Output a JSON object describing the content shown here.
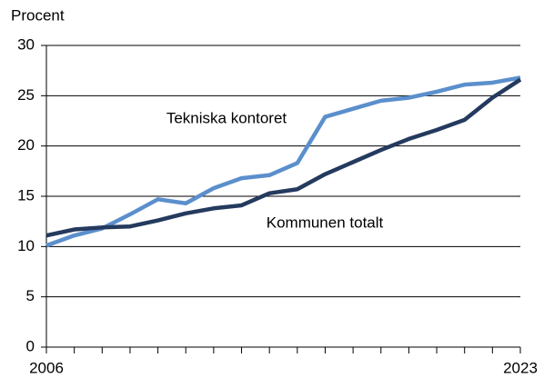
{
  "chart_data": {
    "type": "line",
    "ylabel": "Procent",
    "x": [
      2006,
      2007,
      2008,
      2009,
      2010,
      2011,
      2012,
      2013,
      2014,
      2015,
      2016,
      2017,
      2018,
      2019,
      2020,
      2021,
      2022,
      2023
    ],
    "xlim": [
      2006,
      2023
    ],
    "xticks": [
      2006,
      2023
    ],
    "ylim": [
      0,
      30
    ],
    "yticks": [
      0,
      5,
      10,
      15,
      20,
      25,
      30
    ],
    "grid": true,
    "series": [
      {
        "name": "Tekniska kontoret",
        "color": "#5b8fcc",
        "values": [
          10.1,
          11.1,
          11.8,
          13.2,
          14.7,
          14.3,
          15.8,
          16.8,
          17.1,
          18.3,
          22.9,
          23.7,
          24.5,
          24.8,
          25.4,
          26.1,
          26.3,
          26.8
        ]
      },
      {
        "name": "Kommunen totalt",
        "color": "#243a5e",
        "values": [
          11.1,
          11.7,
          11.9,
          12.0,
          12.6,
          13.3,
          13.8,
          14.1,
          15.3,
          15.7,
          17.2,
          18.4,
          19.6,
          20.7,
          21.6,
          22.6,
          24.8,
          26.6
        ]
      }
    ]
  }
}
